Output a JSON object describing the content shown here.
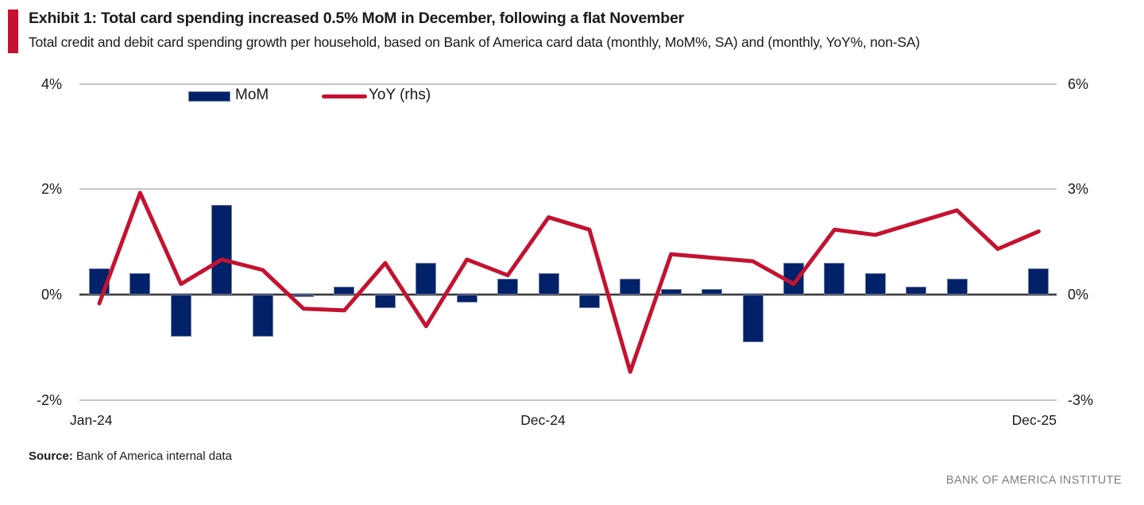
{
  "header": {
    "title": "Exhibit 1: Total card spending increased 0.5% MoM in December, following a flat November",
    "subtitle": "Total credit and debit card spending growth per household, based on Bank of America card data (monthly, MoM%, SA) and (monthly, YoY%, non-SA)",
    "accent_color": "#C41230"
  },
  "legend": [
    {
      "label": "MoM",
      "type": "bar",
      "color": "#012169"
    },
    {
      "label": "YoY (rhs)",
      "type": "line",
      "color": "#C41230"
    }
  ],
  "chart_data": {
    "type": "bar+line",
    "x": [
      "Jan-24",
      "Feb-24",
      "Mar-24",
      "Apr-24",
      "May-24",
      "Jun-24",
      "Jul-24",
      "Aug-24",
      "Sep-24",
      "Oct-24",
      "Nov-24",
      "Dec-24",
      "Jan-25",
      "Feb-25",
      "Mar-25",
      "Apr-25",
      "May-25",
      "Jun-25",
      "Jul-25",
      "Aug-25",
      "Sep-25",
      "Oct-25",
      "Nov-25",
      "Dec-25"
    ],
    "series": [
      {
        "name": "MoM",
        "type": "bar",
        "axis": "left",
        "color": "#012169",
        "values": [
          0.5,
          0.4,
          -0.8,
          1.7,
          -0.8,
          -0.05,
          0.15,
          -0.25,
          0.6,
          -0.15,
          0.3,
          0.4,
          -0.25,
          0.3,
          0.1,
          0.1,
          -0.9,
          0.6,
          0.6,
          0.4,
          0.15,
          0.3,
          0.0,
          0.5
        ]
      },
      {
        "name": "YoY (rhs)",
        "type": "line",
        "axis": "right",
        "color": "#C41230",
        "values": [
          -0.25,
          2.9,
          0.3,
          1.0,
          0.7,
          -0.4,
          -0.45,
          0.9,
          -0.9,
          1.0,
          0.55,
          2.2,
          1.85,
          -2.2,
          1.15,
          1.05,
          0.95,
          0.3,
          1.85,
          1.7,
          2.05,
          2.4,
          1.3,
          1.8
        ]
      }
    ],
    "left_axis": {
      "ticks": [
        "4%",
        "2%",
        "0%",
        "-2%"
      ],
      "tick_values": [
        4,
        2,
        0,
        -2
      ],
      "range": [
        -2,
        4
      ]
    },
    "right_axis": {
      "ticks": [
        "6%",
        "3%",
        "0%",
        "-3%"
      ],
      "tick_values": [
        6,
        3,
        0,
        -3
      ],
      "range": [
        -3,
        6
      ]
    },
    "x_axis": {
      "labels": [
        "Jan-24",
        "Dec-24",
        "Dec-25"
      ],
      "label_month_index": [
        0,
        11,
        23
      ]
    },
    "grid": true,
    "legend_position": "top-left-inside",
    "title": "Exhibit 1: Total card spending increased 0.5% MoM in December, following a flat November"
  },
  "footer": {
    "source_label": "Source:",
    "source_text": " Bank of America internal data",
    "branding": "BANK OF AMERICA INSTITUTE"
  }
}
